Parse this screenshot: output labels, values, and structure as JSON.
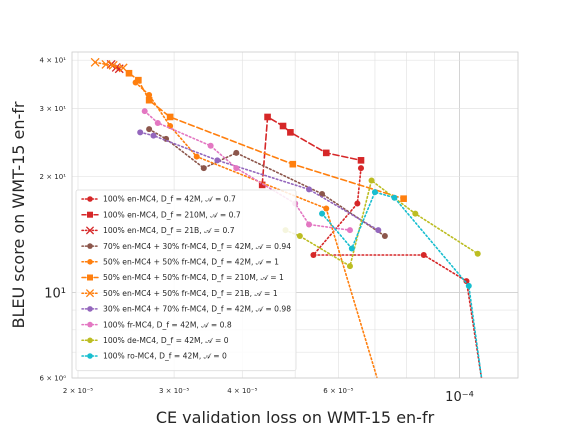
{
  "chart_data": {
    "type": "line",
    "title": "",
    "xlabel": "CE validation loss on WMT-15 en-fr",
    "ylabel": "BLEU score on WMT-15 en-fr",
    "xscale": "log",
    "yscale": "log",
    "xlim": [
      1.95e-05,
      0.000128
    ],
    "ylim": [
      6,
      42
    ],
    "grid": true,
    "legend_position": "lower-left",
    "x_ticks": [
      {
        "v": 2e-05,
        "label": "2 × 10⁻⁵",
        "major": false
      },
      {
        "v": 3e-05,
        "label": "3 × 10⁻⁵",
        "major": false
      },
      {
        "v": 4e-05,
        "label": "4 × 10⁻⁵",
        "major": false
      },
      {
        "v": 6e-05,
        "label": "6 × 10⁻⁵",
        "major": false
      },
      {
        "v": 0.0001,
        "label": "10⁻⁴",
        "major": true
      }
    ],
    "y_ticks": [
      {
        "v": 6,
        "label": "6 × 10⁰",
        "major": false
      },
      {
        "v": 10,
        "label": "10¹",
        "major": true
      },
      {
        "v": 20,
        "label": "2 × 10¹",
        "major": false
      },
      {
        "v": 30,
        "label": "3 × 10¹",
        "major": false
      },
      {
        "v": 40,
        "label": "4 × 10¹",
        "major": false
      }
    ],
    "series": [
      {
        "name": "100% en-MC4, D_f = 42M, 𝒜 = 0.7",
        "color": "#d62728",
        "marker": "circle",
        "points": [
          [
            6.6e-05,
            21
          ],
          [
            6.5e-05,
            17
          ],
          [
            5.4e-05,
            12.5
          ],
          [
            8.6e-05,
            12.5
          ],
          [
            0.000103,
            10.7
          ]
        ],
        "curve_to": [
          0.00011,
          6
        ]
      },
      {
        "name": "100% en-MC4, D_f = 210M, 𝒜 = 0.7",
        "color": "#d62728",
        "marker": "square",
        "points": [
          [
            4.35e-05,
            19
          ],
          [
            4.45e-05,
            28.5
          ],
          [
            4.75e-05,
            27
          ],
          [
            4.9e-05,
            26
          ],
          [
            5.7e-05,
            23
          ],
          [
            6.6e-05,
            22
          ]
        ]
      },
      {
        "name": "100% en-MC4, D_f = 21B, 𝒜 = 0.7",
        "color": "#d62728",
        "marker": "x",
        "points": [
          [
            2.3e-05,
            39
          ],
          [
            2.35e-05,
            38.3
          ],
          [
            2.38e-05,
            38
          ]
        ]
      },
      {
        "name": "70% en-MC4 + 30% fr-MC4, D_f = 42M, 𝒜 = 0.94",
        "color": "#8c564b",
        "marker": "circle",
        "points": [
          [
            2.7e-05,
            26.5
          ],
          [
            2.9e-05,
            25
          ],
          [
            3.4e-05,
            21
          ],
          [
            3.9e-05,
            23
          ],
          [
            5.6e-05,
            18
          ],
          [
            7.3e-05,
            14
          ]
        ]
      },
      {
        "name": "50% en-MC4 + 50% fr-MC4, D_f = 42M, 𝒜 = 1",
        "color": "#ff7f0e",
        "marker": "circle",
        "points": [
          [
            2.55e-05,
            35
          ],
          [
            2.7e-05,
            32.5
          ],
          [
            2.95e-05,
            27
          ],
          [
            3.3e-05,
            22.5
          ],
          [
            5.7e-05,
            16.5
          ]
        ],
        "curve_to": [
          7.1e-05,
          6
        ]
      },
      {
        "name": "50% en-MC4 + 50% fr-MC4, D_f = 210M, 𝒜 = 1",
        "color": "#ff7f0e",
        "marker": "square",
        "points": [
          [
            2.48e-05,
            37
          ],
          [
            2.58e-05,
            35.5
          ],
          [
            2.7e-05,
            31.5
          ],
          [
            2.95e-05,
            28.5
          ],
          [
            4.95e-05,
            21.5
          ],
          [
            7.9e-05,
            17.5
          ]
        ]
      },
      {
        "name": "50% en-MC4 + 50% fr-MC4, D_f = 21B, 𝒜 = 1",
        "color": "#ff7f0e",
        "marker": "x",
        "points": [
          [
            2.15e-05,
            39.5
          ],
          [
            2.25e-05,
            39
          ],
          [
            2.32e-05,
            38.8
          ],
          [
            2.42e-05,
            38.2
          ]
        ]
      },
      {
        "name": "30% en-MC4 + 70% fr-MC4, D_f = 42M, 𝒜 = 0.98",
        "color": "#9467bd",
        "marker": "circle",
        "points": [
          [
            2.6e-05,
            26
          ],
          [
            2.75e-05,
            25.5
          ],
          [
            3.6e-05,
            22
          ],
          [
            5.3e-05,
            18.5
          ],
          [
            7.1e-05,
            14.5
          ]
        ]
      },
      {
        "name": "100% fr-MC4, D_f = 42M, 𝒜 = 0.8",
        "color": "#e377c2",
        "marker": "circle",
        "points": [
          [
            2.65e-05,
            29.5
          ],
          [
            2.8e-05,
            27.5
          ],
          [
            3.5e-05,
            24
          ],
          [
            3.9e-05,
            21
          ],
          [
            5e-05,
            17
          ],
          [
            5.3e-05,
            15
          ],
          [
            6.3e-05,
            14.5
          ]
        ]
      },
      {
        "name": "100% de-MC4, D_f = 42M, 𝒜 = 0",
        "color": "#bcbd22",
        "marker": "circle",
        "points": [
          [
            4.8e-05,
            14.5
          ],
          [
            5.1e-05,
            14
          ],
          [
            6.3e-05,
            11.7
          ],
          [
            6.9e-05,
            19.5
          ],
          [
            8.3e-05,
            16
          ],
          [
            0.000108,
            12.6
          ]
        ]
      },
      {
        "name": "100% ro-MC4, D_f = 42M, 𝒜 = 0",
        "color": "#17becf",
        "marker": "circle",
        "points": [
          [
            5.6e-05,
            16
          ],
          [
            6.35e-05,
            13
          ],
          [
            7e-05,
            18.2
          ],
          [
            7.6e-05,
            17.6
          ],
          [
            0.000104,
            10.4
          ]
        ],
        "curve_to": [
          0.00011,
          6
        ]
      }
    ]
  }
}
